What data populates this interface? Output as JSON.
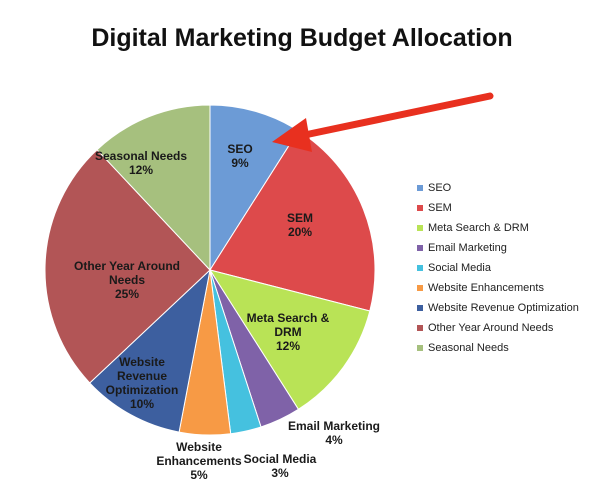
{
  "chart_data": {
    "type": "pie",
    "title": "Digital Marketing Budget Allocation",
    "categories": [
      "SEO",
      "SEM",
      "Meta Search & DRM",
      "Email Marketing",
      "Social Media",
      "Website Enhancements",
      "Website Revenue Optimization",
      "Other Year Around Needs",
      "Seasonal Needs"
    ],
    "values": [
      9,
      20,
      12,
      4,
      3,
      5,
      10,
      25,
      12
    ],
    "value_labels": [
      "9%",
      "20%",
      "12%",
      "4%",
      "3%",
      "5%",
      "10%",
      "25%",
      "12%"
    ],
    "colors": [
      "#6c9bd6",
      "#dd4a4b",
      "#b9e356",
      "#7f62a8",
      "#45c1df",
      "#f79a45",
      "#3d5f9f",
      "#b25556",
      "#a6c07e"
    ],
    "legend": "right"
  }
}
